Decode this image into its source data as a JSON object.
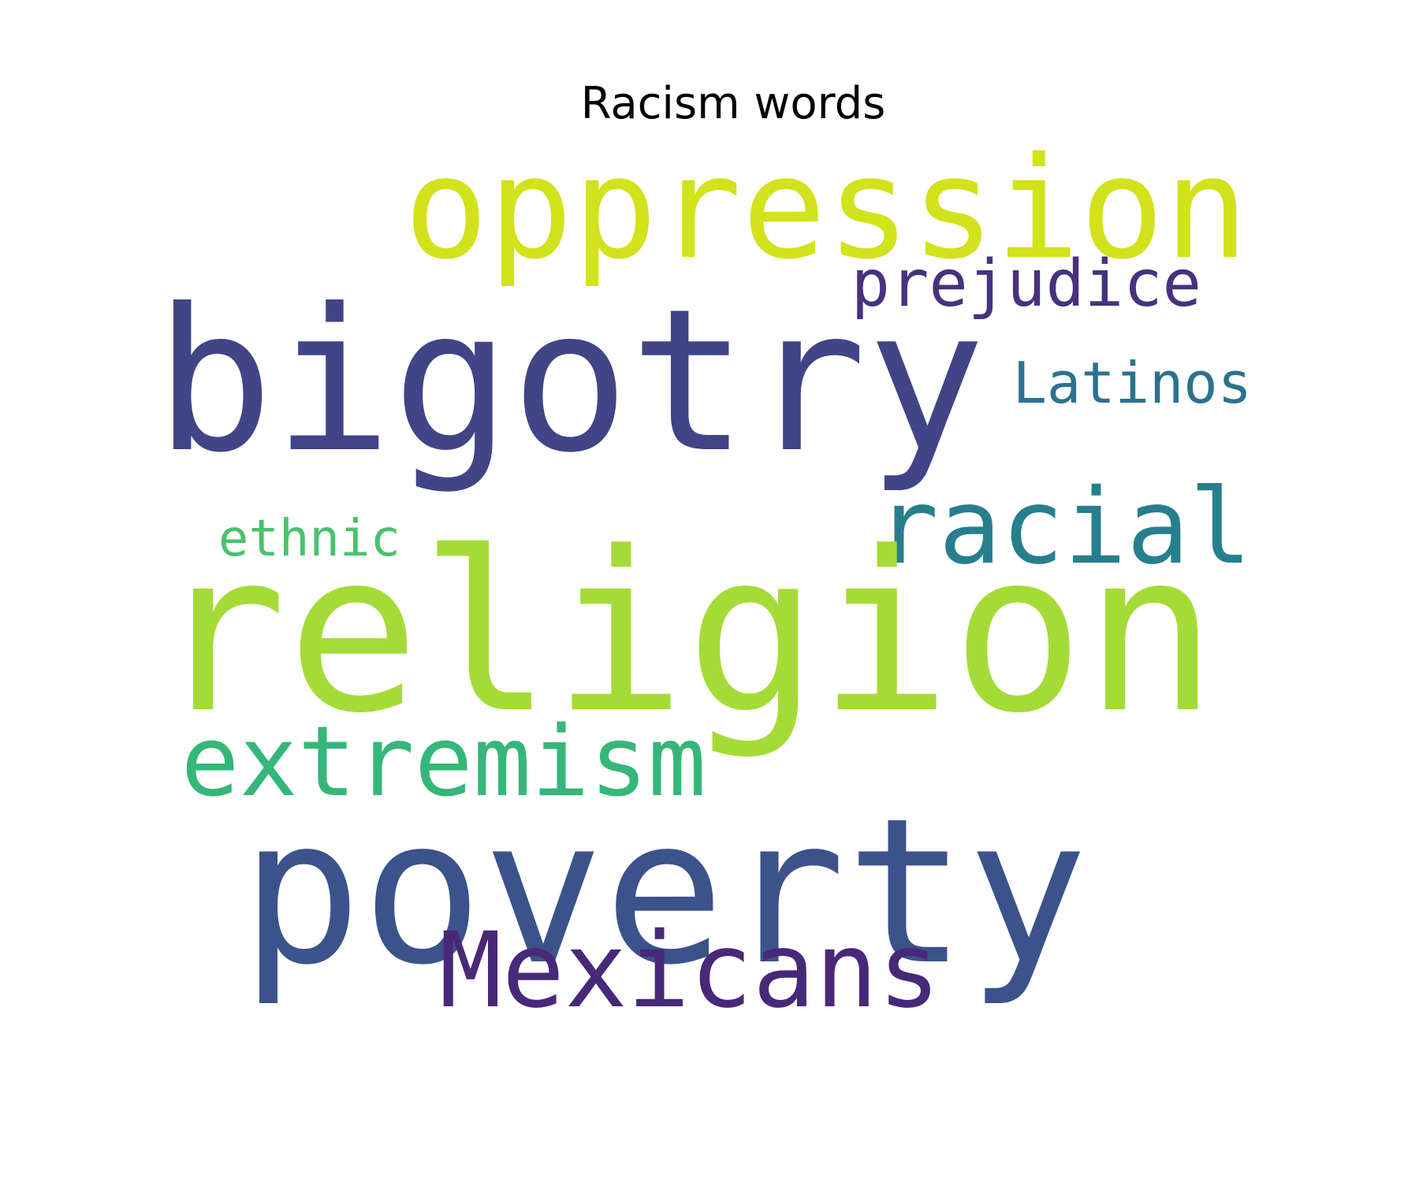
{
  "title": "Racism words",
  "words": [
    {
      "id": "oppression",
      "text": "oppression",
      "color": "#d2e21b"
    },
    {
      "id": "bigotry",
      "text": "bigotry",
      "color": "#414487"
    },
    {
      "id": "prejudice",
      "text": "prejudice",
      "color": "#46327e"
    },
    {
      "id": "latinos",
      "text": "Latinos",
      "color": "#2c728e"
    },
    {
      "id": "racial",
      "text": "racial",
      "color": "#277f8e"
    },
    {
      "id": "ethnic",
      "text": "ethnic",
      "color": "#4ac16d"
    },
    {
      "id": "religion",
      "text": "religion",
      "color": "#a5db36"
    },
    {
      "id": "extremism",
      "text": "extremism",
      "color": "#35b779"
    },
    {
      "id": "poverty",
      "text": "poverty",
      "color": "#3b528b"
    },
    {
      "id": "mexicans",
      "text": "Mexicans",
      "color": "#482878"
    }
  ]
}
